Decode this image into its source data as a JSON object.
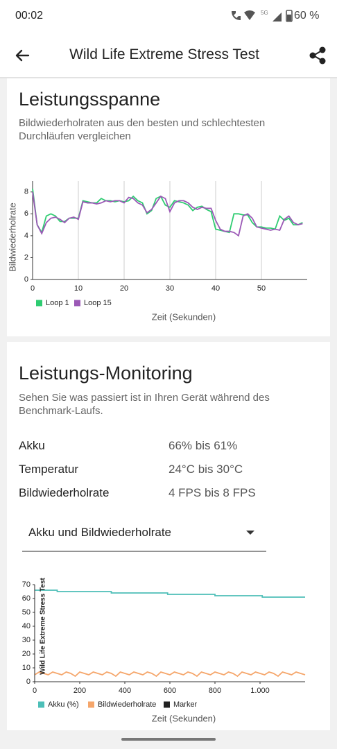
{
  "status_bar": {
    "time": "00:02",
    "network": "5G",
    "battery": "60 %"
  },
  "app_bar": {
    "title": "Wild Life Extreme Stress Test"
  },
  "performance_range": {
    "title": "Leistungsspanne",
    "subtitle": "Bildwiederholraten aus den besten und schlechtesten Durchläufen vergleichen"
  },
  "monitoring": {
    "title": "Leistungs-Monitoring",
    "subtitle": "Sehen Sie was passiert ist in Ihren Gerät während des Benchmark-Laufs.",
    "rows": [
      [
        "Akku",
        "66% bis 61%"
      ],
      [
        "Temperatur",
        "24°C bis 30°C"
      ],
      [
        "Bildwiederholrate",
        "4 FPS bis 8 FPS"
      ]
    ],
    "dropdown": "Akku und Bildwiederholrate"
  },
  "chart_data": [
    {
      "type": "line",
      "x_label": "Zeit (Sekunden)",
      "y_label": "Bildwiederholrate",
      "x": [
        0,
        1,
        2,
        3,
        4,
        5,
        6,
        7,
        8,
        9,
        10,
        11,
        12,
        13,
        14,
        15,
        16,
        17,
        18,
        19,
        20,
        21,
        22,
        23,
        24,
        25,
        26,
        27,
        28,
        29,
        30,
        31,
        32,
        33,
        34,
        35,
        36,
        37,
        38,
        39,
        40,
        41,
        42,
        43,
        44,
        45,
        46,
        47,
        48,
        49,
        50,
        51,
        52,
        53,
        54,
        55,
        56,
        57,
        58,
        59
      ],
      "series": [
        {
          "name": "Loop 1",
          "color": "#2ecc71",
          "values": [
            8.3,
            5.0,
            4.3,
            5.8,
            6.0,
            5.8,
            5.3,
            5.3,
            5.6,
            5.6,
            5.6,
            7.2,
            7.1,
            7.0,
            7.0,
            7.4,
            7.2,
            7.2,
            7.1,
            7.2,
            7.1,
            7.2,
            7.6,
            7.2,
            7.0,
            6.0,
            6.3,
            7.4,
            7.6,
            6.8,
            6.6,
            7.2,
            7.1,
            7.0,
            6.8,
            6.3,
            6.6,
            6.7,
            6.4,
            6.2,
            4.6,
            4.5,
            4.4,
            4.3,
            6.0,
            6.0,
            5.9,
            5.9,
            5.2,
            4.8,
            4.8,
            4.7,
            4.7,
            4.6,
            5.8,
            5.4,
            5.6,
            5.0,
            5.0,
            5.2
          ]
        },
        {
          "name": "Loop 15",
          "color": "#9b59b6",
          "values": [
            8.0,
            5.0,
            4.2,
            5.2,
            5.6,
            5.7,
            5.5,
            5.2,
            5.6,
            5.7,
            5.5,
            7.1,
            7.0,
            7.0,
            6.9,
            7.0,
            7.2,
            7.1,
            7.2,
            7.2,
            7.0,
            7.5,
            7.4,
            7.0,
            6.8,
            6.1,
            6.4,
            7.0,
            7.6,
            7.4,
            6.2,
            7.0,
            7.2,
            7.2,
            7.0,
            6.6,
            6.4,
            6.6,
            6.5,
            6.5,
            5.4,
            4.6,
            4.4,
            4.4,
            4.3,
            4.0,
            5.8,
            6.0,
            5.6,
            4.8,
            4.7,
            4.6,
            4.5,
            4.6,
            4.5,
            5.5,
            5.8,
            5.2,
            5.0,
            5.1
          ]
        }
      ],
      "xlim": [
        0,
        60
      ],
      "xticks": [
        0,
        10,
        20,
        30,
        40,
        50
      ],
      "ylim": [
        0,
        9
      ],
      "yticks": [
        0,
        2,
        4,
        6,
        8
      ],
      "grid": true
    },
    {
      "type": "line",
      "x_label": "Zeit (Sekunden)",
      "series": [
        {
          "name": "Akku (%)",
          "color": "#4dbfb8",
          "x": [
            0,
            100,
            100,
            340,
            340,
            590,
            590,
            800,
            800,
            1010,
            1010,
            1200
          ],
          "values": [
            66,
            66,
            65,
            65,
            64,
            64,
            63,
            63,
            62,
            62,
            61,
            61
          ]
        },
        {
          "name": "Bildwiederholrate",
          "color": "#f5a66b",
          "x": [
            0,
            20,
            40,
            60,
            80,
            100,
            120,
            140,
            160,
            180,
            200,
            220,
            240,
            260,
            280,
            300,
            320,
            340,
            360,
            380,
            400,
            420,
            440,
            460,
            480,
            500,
            520,
            540,
            560,
            580,
            600,
            620,
            640,
            660,
            680,
            700,
            720,
            740,
            760,
            780,
            800,
            820,
            840,
            860,
            880,
            900,
            920,
            940,
            960,
            980,
            1000,
            1020,
            1040,
            1060,
            1080,
            1100,
            1120,
            1140,
            1160,
            1180,
            1200
          ],
          "values": [
            5,
            7,
            6,
            5,
            7,
            6,
            5,
            7,
            6,
            4,
            7,
            6,
            5,
            7,
            6,
            5,
            7,
            6,
            4,
            7,
            6,
            5,
            7,
            6,
            5,
            7,
            6,
            4,
            7,
            6,
            5,
            7,
            6,
            5,
            7,
            6,
            4,
            7,
            6,
            5,
            7,
            6,
            5,
            7,
            6,
            4,
            7,
            6,
            5,
            7,
            6,
            5,
            7,
            6,
            4,
            7,
            6,
            5,
            7,
            6,
            5
          ]
        },
        {
          "name": "Marker",
          "color": "#222222",
          "x": [
            0
          ],
          "labels": [
            "Wild Life Extreme Stress Test"
          ]
        }
      ],
      "xlim": [
        0,
        1200
      ],
      "xticks": [
        0,
        200,
        400,
        600,
        800,
        {
          "value": 1000,
          "label": "1.000"
        }
      ],
      "ylim": [
        0,
        70
      ],
      "yticks": [
        0,
        10,
        20,
        30,
        40,
        50,
        60,
        70
      ],
      "grid": false
    }
  ]
}
